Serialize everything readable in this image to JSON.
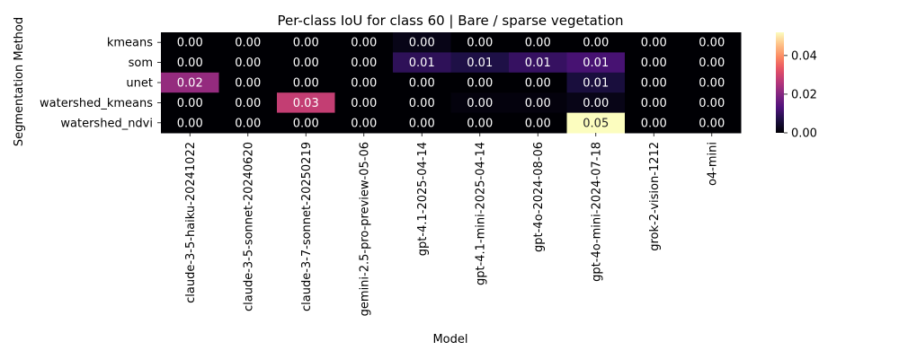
{
  "chart_data": {
    "type": "heatmap",
    "title": "Per-class IoU for class 60 | Bare / sparse vegetation",
    "xlabel": "Model",
    "ylabel": "Segmentation Method",
    "x_categories": [
      "claude-3-5-haiku-20241022",
      "claude-3-5-sonnet-20240620",
      "claude-3-7-sonnet-20250219",
      "gemini-2.5-pro-preview-05-06",
      "gpt-4.1-2025-04-14",
      "gpt-4.1-mini-2025-04-14",
      "gpt-4o-2024-08-06",
      "gpt-4o-mini-2024-07-18",
      "grok-2-vision-1212",
      "o4-mini"
    ],
    "y_categories": [
      "kmeans",
      "som",
      "unet",
      "watershed_kmeans",
      "watershed_ndvi"
    ],
    "values": [
      [
        0.0,
        0.0,
        0.0,
        0.0,
        0.002,
        0.0,
        0.0,
        0.0,
        0.0,
        0.0
      ],
      [
        0.0,
        0.0,
        0.0,
        0.0,
        0.009,
        0.007,
        0.01,
        0.012,
        0.0,
        0.0
      ],
      [
        0.022,
        0.0,
        0.0,
        0.0,
        0.0,
        0.0,
        0.0,
        0.006,
        0.0,
        0.0
      ],
      [
        0.0,
        0.0,
        0.028,
        0.0,
        0.0,
        0.001,
        0.001,
        0.002,
        0.0,
        0.0
      ],
      [
        0.0,
        0.0,
        0.0,
        0.0,
        0.0,
        0.0,
        0.0,
        0.052,
        0.0,
        0.0
      ]
    ],
    "value_labels": [
      [
        "0.00",
        "0.00",
        "0.00",
        "0.00",
        "0.00",
        "0.00",
        "0.00",
        "0.00",
        "0.00",
        "0.00"
      ],
      [
        "0.00",
        "0.00",
        "0.00",
        "0.00",
        "0.01",
        "0.01",
        "0.01",
        "0.01",
        "0.00",
        "0.00"
      ],
      [
        "0.02",
        "0.00",
        "0.00",
        "0.00",
        "0.00",
        "0.00",
        "0.00",
        "0.01",
        "0.00",
        "0.00"
      ],
      [
        "0.00",
        "0.00",
        "0.03",
        "0.00",
        "0.00",
        "0.00",
        "0.00",
        "0.00",
        "0.00",
        "0.00"
      ],
      [
        "0.00",
        "0.00",
        "0.00",
        "0.00",
        "0.00",
        "0.00",
        "0.00",
        "0.05",
        "0.00",
        "0.00"
      ]
    ],
    "colormap": "magma",
    "colorbar": {
      "range": [
        0,
        0.052
      ],
      "ticks": [
        "0.00",
        "0.02",
        "0.04"
      ],
      "tick_values": [
        0,
        0.02,
        0.04
      ]
    }
  }
}
